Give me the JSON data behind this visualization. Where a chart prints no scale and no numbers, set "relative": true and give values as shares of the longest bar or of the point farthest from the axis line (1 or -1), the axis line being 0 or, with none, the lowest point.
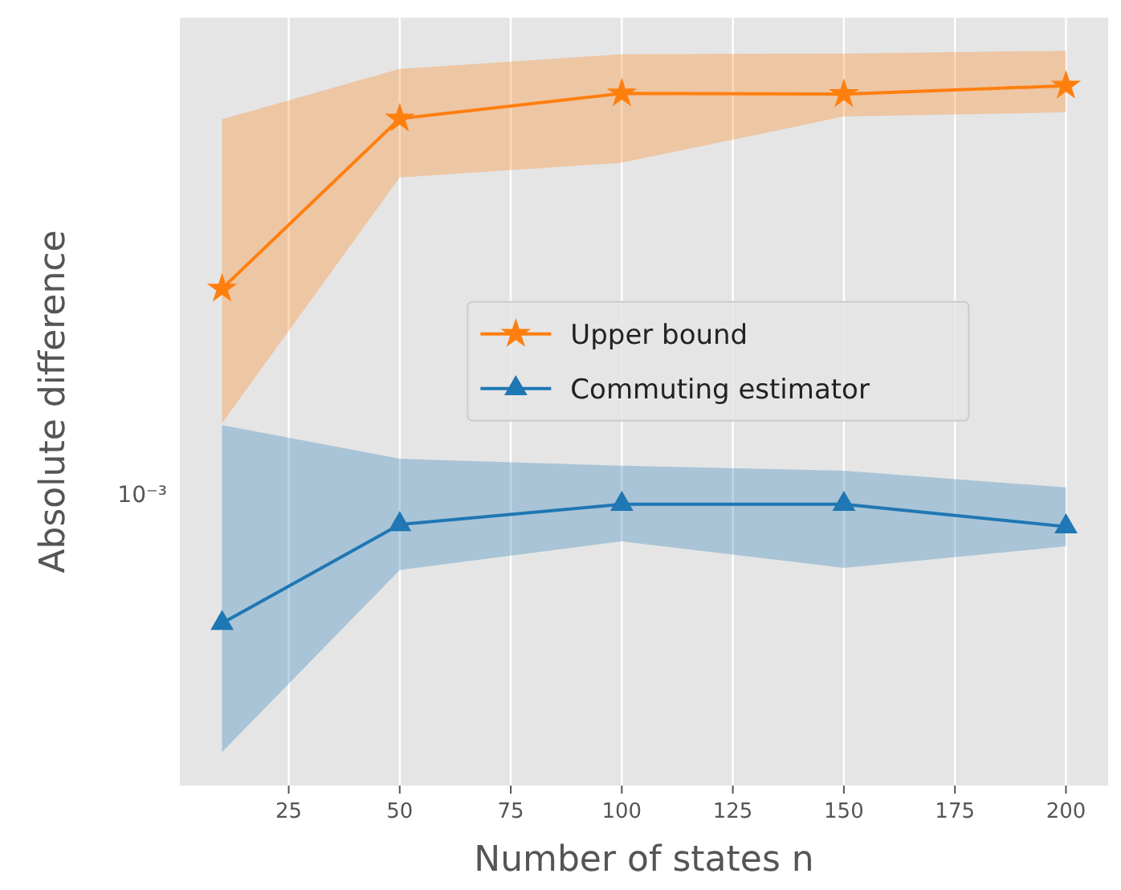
{
  "chart_data": {
    "type": "line",
    "xlabel": "Number of states n",
    "ylabel": "Absolute difference",
    "x": [
      10,
      50,
      100,
      150,
      200
    ],
    "series": [
      {
        "name": "Upper bound",
        "color": "#ff7f0e",
        "marker": "star",
        "values": [
          0.71,
          0.953,
          0.989,
          0.988,
          1
        ],
        "lower": [
          0.518,
          0.869,
          0.89,
          0.956,
          0.962
        ],
        "upper": [
          0.952,
          1.024,
          1.045,
          1.046,
          1.05
        ]
      },
      {
        "name": "Commuting estimator",
        "color": "#1f77b4",
        "marker": "triangle",
        "values": [
          0.232,
          0.373,
          0.402,
          0.402,
          0.37
        ],
        "lower": [
          0.048,
          0.308,
          0.349,
          0.311,
          0.342
        ],
        "upper": [
          0.515,
          0.467,
          0.457,
          0.45,
          0.426
        ]
      }
    ],
    "relative": true,
    "xlim": [
      0.5,
      209.5
    ],
    "xticks": [
      25,
      50,
      75,
      100,
      125,
      150,
      175,
      200
    ],
    "annotations": [
      "10⁻³"
    ],
    "grid": "x",
    "legend": "center",
    "line_style": "solid"
  }
}
